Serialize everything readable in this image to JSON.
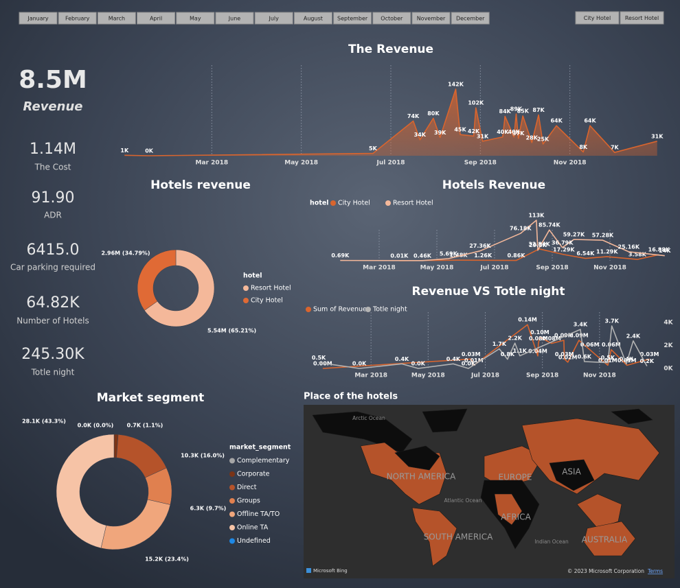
{
  "slicers": {
    "months": [
      "January",
      "February",
      "March",
      "April",
      "May",
      "June",
      "July",
      "August",
      "September",
      "October",
      "November",
      "December"
    ],
    "hotels": [
      "City Hotel",
      "Resort Hotel"
    ]
  },
  "kpis": [
    {
      "value": "8.5M",
      "label": "Revenue"
    },
    {
      "value": "1.14M",
      "label": "The Cost"
    },
    {
      "value": "91.90",
      "label": "ADR"
    },
    {
      "value": "6415.0",
      "label": "Car parking required"
    },
    {
      "value": "64.82K",
      "label": "Number of Hotels"
    },
    {
      "value": "245.30K",
      "label": "Totle night"
    }
  ],
  "chart_data": [
    {
      "type": "line",
      "title": "The Revenue",
      "color": "#d9652e",
      "area": true,
      "x": [
        1.05,
        1.6,
        6.6,
        7.5,
        7.65,
        7.95,
        8.1,
        8.45,
        8.55,
        8.85,
        8.9,
        9.05,
        9.5,
        9.55,
        9.75,
        9.8,
        9.85,
        9.95,
        10.15,
        10.3,
        10.4,
        10.7,
        11.3,
        11.45,
        12.0,
        12.95
      ],
      "values": [
        1,
        0,
        5,
        74,
        34,
        80,
        39,
        142,
        45,
        42,
        102,
        31,
        40,
        84,
        40,
        89,
        37,
        85,
        28,
        87,
        25,
        64,
        8,
        64,
        7,
        31
      ],
      "value_labels": [
        "1K",
        "0K",
        "5K",
        "74K",
        "34K",
        "80K",
        "39K",
        "142K",
        "45K",
        "42K",
        "102K",
        "31K",
        "40K",
        "84K",
        "40K",
        "89K",
        "37K",
        "85K",
        "28K",
        "87K",
        "25K",
        "64K",
        "8K",
        "64K",
        "7K",
        "31K"
      ],
      "xlim": [
        1,
        13
      ],
      "xticks": [
        {
          "value": 3,
          "label": "Mar 2018"
        },
        {
          "value": 5,
          "label": "May 2018"
        },
        {
          "value": 7,
          "label": "Jul 2018"
        },
        {
          "value": 9,
          "label": "Sep 2018"
        },
        {
          "value": 11,
          "label": "Nov 2018"
        }
      ]
    },
    {
      "type": "line",
      "title": "Hotels Revenue",
      "legend_title": "hotel",
      "series": [
        {
          "name": "City Hotel",
          "color": "#d9652e",
          "x": [
            3.7,
            5.75,
            6.6,
            7.75,
            8.55,
            9.4,
            10.15,
            10.9,
            11.95,
            12.7
          ],
          "values": [
            0.01,
            1.48,
            1.26,
            0.86,
            32.84,
            17.29,
            6.54,
            11.29,
            3.58,
            16.88
          ],
          "value_labels": [
            "0.01K",
            "1.48K",
            "1.26K",
            "0.86K",
            "32.84K",
            "17.29K",
            "6.54K",
            "11.29K",
            "3.58K",
            "16.88K"
          ]
        },
        {
          "name": "Resort Hotel",
          "color": "#f4b89a",
          "x": [
            1.65,
            4.5,
            5.4,
            6.5,
            7.9,
            8.45,
            8.5,
            8.9,
            9.35,
            9.75,
            10.75,
            11.65,
            12.9
          ],
          "values": [
            0.69,
            0.46,
            5.69,
            27.36,
            76.18,
            113,
            29.3,
            85.74,
            36.79,
            59.27,
            57.28,
            25.16,
            14
          ],
          "value_labels": [
            "0.69K",
            "0.46K",
            "5.69K",
            "27.36K",
            "76.18K",
            "113K",
            "29.3K",
            "85.74K",
            "36.79K",
            "59.27K",
            "57.28K",
            "25.16K",
            "14K"
          ]
        }
      ],
      "xlim": [
        1,
        13
      ],
      "xticks": [
        {
          "value": 3,
          "label": "Mar 2018"
        },
        {
          "value": 5,
          "label": "May 2018"
        },
        {
          "value": 7,
          "label": "Jul 2018"
        },
        {
          "value": 9,
          "label": "Sep 2018"
        },
        {
          "value": 11,
          "label": "Nov 2018"
        }
      ]
    },
    {
      "type": "line",
      "title": "Revenue VS Totle night",
      "series": [
        {
          "name": "Sum of Revenue",
          "color": "#d9652e",
          "x": [
            1.31,
            6.5,
            6.6,
            8.48,
            8.84,
            8.86,
            8.91,
            9.32,
            9.75,
            9.77,
            9.89,
            10.28,
            10.66,
            11.29,
            11.41,
            11.96,
            12.75
          ],
          "values": [
            0.0,
            0.03,
            0.01,
            0.14,
            0.04,
            0.08,
            0.1,
            0.08,
            0.09,
            0.03,
            0.02,
            0.09,
            0.06,
            0.01,
            0.06,
            0.01,
            0.03
          ],
          "value_labels": [
            "0.00M",
            "0.03M",
            "0.01M",
            "0.14M",
            "0.04M",
            "0.08M",
            "0.10M",
            "0.08M",
            "0.09M",
            "0.03M",
            "0.02M",
            "0.09M",
            "0.06M",
            "0.01M",
            "0.06M",
            "0.01M",
            "0.03M"
          ]
        },
        {
          "name": "Totle night",
          "color": "#b4b4b4",
          "axis": "y2",
          "x": [
            1.17,
            2.59,
            4.08,
            4.65,
            5.88,
            6.41,
            7.49,
            7.78,
            8.04,
            8.21,
            10.33,
            10.47,
            11.29,
            11.43,
            11.94,
            12.18,
            12.66
          ],
          "values": [
            500,
            0,
            400,
            0,
            400,
            0,
            1700,
            800,
            2200,
            1100,
            3400,
            600,
            500,
            3700,
            400,
            2400,
            200
          ],
          "value_labels": [
            "0.5K",
            "0.0K",
            "0.4K",
            "0.0K",
            "0.4K",
            "0.0K",
            "1.7K",
            "0.8K",
            "2.2K",
            "1.1K",
            "3.4K",
            "0.6K",
            "0.5K",
            "3.7K",
            "0.4K",
            "2.4K",
            "0.2K"
          ]
        }
      ],
      "xlim": [
        1,
        13
      ],
      "xticks": [
        {
          "value": 3,
          "label": "Mar 2018"
        },
        {
          "value": 5,
          "label": "May 2018"
        },
        {
          "value": 7,
          "label": "Jul 2018"
        },
        {
          "value": 9,
          "label": "Sep 2018"
        },
        {
          "value": 11,
          "label": "Nov 2018"
        }
      ],
      "y2lim": [
        0,
        4000
      ],
      "y2ticks": [
        {
          "value": 0,
          "label": "0K"
        },
        {
          "value": 2000,
          "label": "2K"
        },
        {
          "value": 4000,
          "label": "4K"
        }
      ]
    },
    {
      "type": "pie",
      "title": "Hotels revenue",
      "legend_title": "hotel",
      "categories": [
        "Resort Hotel",
        "City Hotel"
      ],
      "values": [
        5.54,
        2.96
      ],
      "value_labels": [
        "5.54M (65.21%)",
        "2.96M (34.79%)"
      ],
      "colors": [
        "#f4b89a",
        "#e06a35"
      ]
    },
    {
      "type": "pie",
      "title": "Market segment",
      "legend_title": "market_segment",
      "categories": [
        "Complementary",
        "Corporate",
        "Direct",
        "Groups",
        "Offline TA/TO",
        "Online TA",
        "Undefined"
      ],
      "values": [
        0.0,
        0.7,
        10.3,
        6.3,
        15.2,
        28.1,
        0
      ],
      "value_labels": [
        "0.0K (0.0%)",
        "0.7K (1.1%)",
        "10.3K (16.0%)",
        "6.3K (9.7%)",
        "15.2K (23.4%)",
        "28.1K (43.3%)",
        null
      ],
      "colors": [
        "#a6a6a6",
        "#7a3417",
        "#b5532a",
        "#e0804f",
        "#f0a67c",
        "#f6c3a6",
        "#1e88e5"
      ]
    }
  ],
  "map": {
    "title": "Place of the hotels",
    "labels": [
      "Arctic Ocean",
      "NORTH AMERICA",
      "EUROPE",
      "ASIA",
      "Atlantic Ocean",
      "AFRICA",
      "SOUTH AMERICA",
      "Indian Ocean",
      "AUSTRALIA"
    ],
    "attribution": "Microsoft Bing",
    "copyright": "© 2023 Microsoft Corporation",
    "terms": "Terms"
  }
}
